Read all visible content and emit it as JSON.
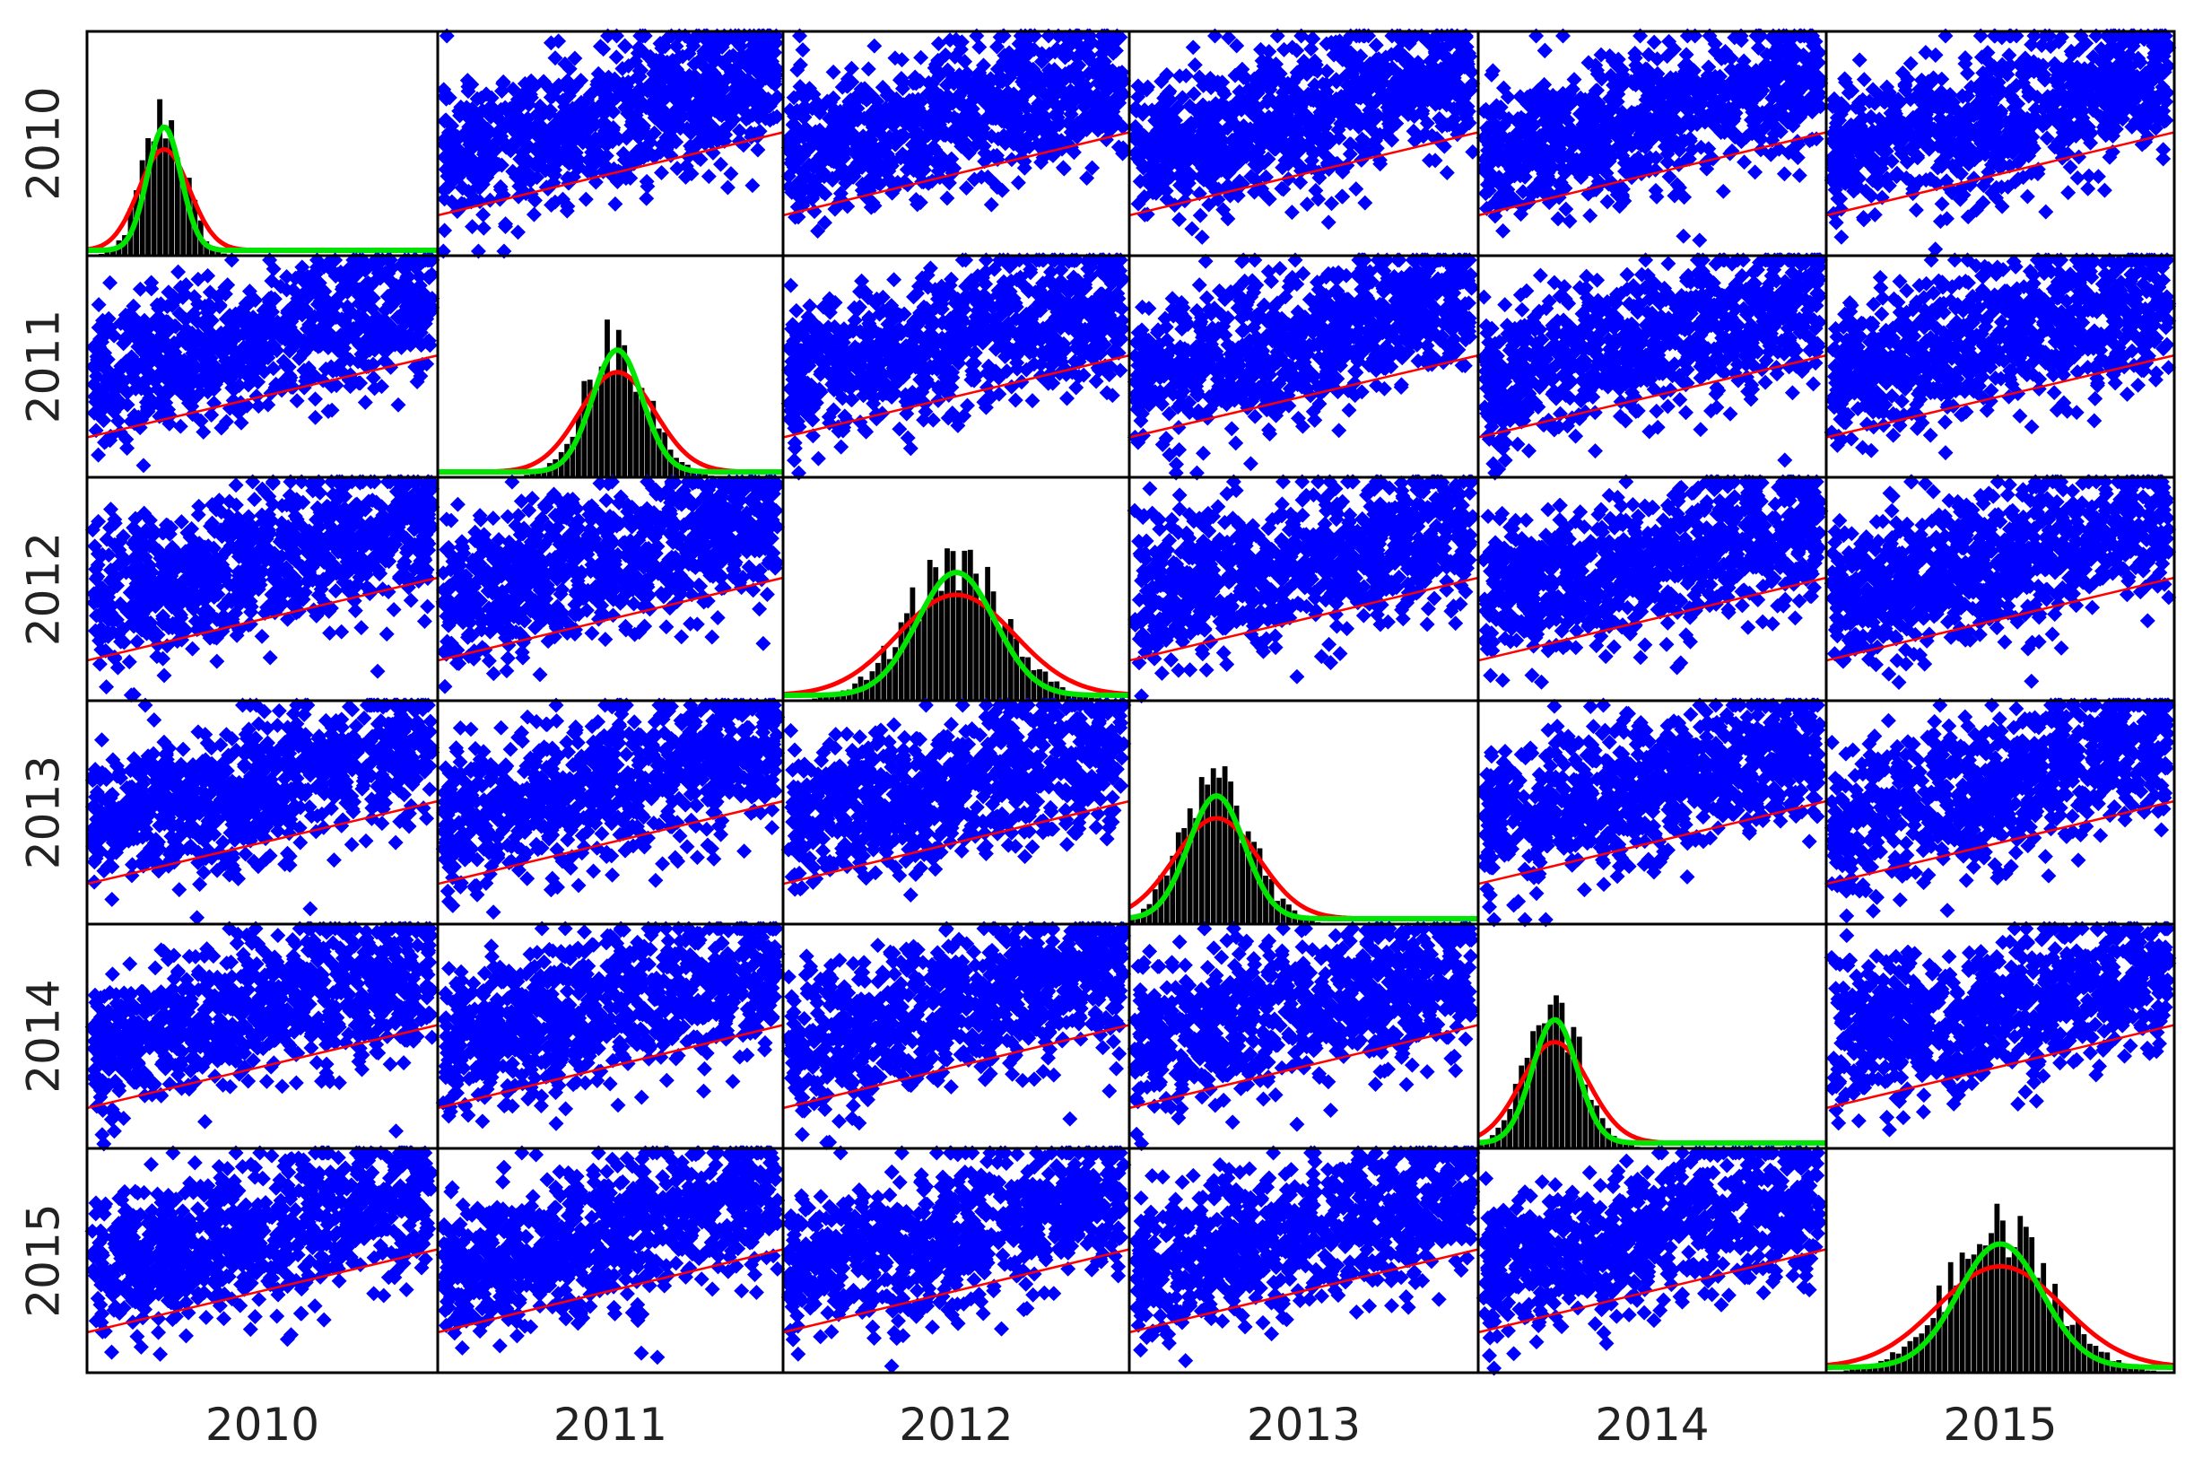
{
  "chart_data": {
    "type": "scatter-matrix",
    "variables": [
      "2010",
      "2011",
      "2012",
      "2013",
      "2014",
      "2015"
    ],
    "diagonal": "histogram with kernel density curves",
    "colors": {
      "points": "#0000ff",
      "regression": "#ff0000",
      "histogram": "#000000",
      "density_fit": "#ff0000",
      "density_kernel": "#00e600",
      "frame": "#000000"
    },
    "off_diagonal": "scatter with linear fit line"
  }
}
